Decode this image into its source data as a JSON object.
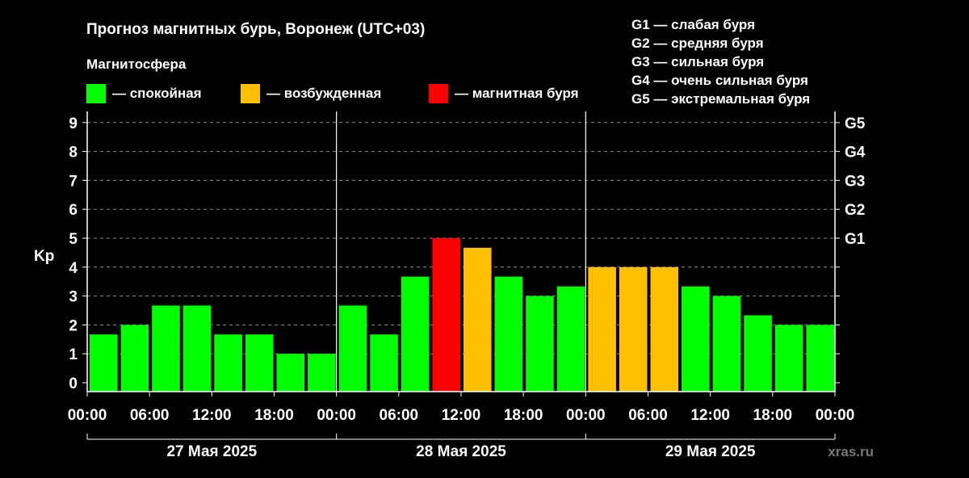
{
  "title": "Прогноз магнитных бурь, Воронеж (UTC+03)",
  "legend": {
    "heading": "Магнитосфера",
    "items": [
      {
        "label": "— спокойная",
        "color": "#00ff00"
      },
      {
        "label": "— возбужденная",
        "color": "#ffc000"
      },
      {
        "label": "— магнитная буря",
        "color": "#ff0000"
      }
    ]
  },
  "g_scale": [
    "G1 — слабая буря",
    "G2 — средняя буря",
    "G3 — сильная буря",
    "G4 — очень сильная буря",
    "G5 — экстремальная буря"
  ],
  "watermark": "xras.ru",
  "chart_data": {
    "type": "bar",
    "ylabel": "Kp",
    "ylim": [
      0,
      9
    ],
    "yticks": [
      "0",
      "1",
      "2",
      "3",
      "4",
      "5",
      "6",
      "7",
      "8",
      "9"
    ],
    "right_ticks": [
      {
        "value": 5,
        "label": "G1"
      },
      {
        "value": 6,
        "label": "G2"
      },
      {
        "value": 7,
        "label": "G3"
      },
      {
        "value": 8,
        "label": "G4"
      },
      {
        "value": 9,
        "label": "G5"
      }
    ],
    "xtick_labels": [
      "00:00",
      "06:00",
      "12:00",
      "18:00",
      "00:00",
      "06:00",
      "12:00",
      "18:00",
      "00:00",
      "06:00",
      "12:00",
      "18:00",
      "00:00"
    ],
    "days": [
      "27 Мая 2025",
      "28 Мая 2025",
      "29 Мая 2025"
    ],
    "interval_hours": 3,
    "values": [
      1.67,
      2.0,
      2.67,
      2.67,
      1.67,
      1.67,
      1.0,
      1.0,
      2.67,
      1.67,
      3.67,
      5.0,
      4.67,
      3.67,
      3.0,
      3.33,
      4.0,
      4.0,
      4.0,
      3.33,
      3.0,
      2.33,
      2.0,
      2.0
    ],
    "levels": [
      "quiet",
      "quiet",
      "quiet",
      "quiet",
      "quiet",
      "quiet",
      "quiet",
      "quiet",
      "quiet",
      "quiet",
      "quiet",
      "storm",
      "active",
      "quiet",
      "quiet",
      "quiet",
      "active",
      "active",
      "active",
      "quiet",
      "quiet",
      "quiet",
      "quiet",
      "quiet"
    ],
    "colors": {
      "quiet": "#00ff00",
      "active": "#ffc000",
      "storm": "#ff0000"
    },
    "grid": "dashed horizontal"
  }
}
